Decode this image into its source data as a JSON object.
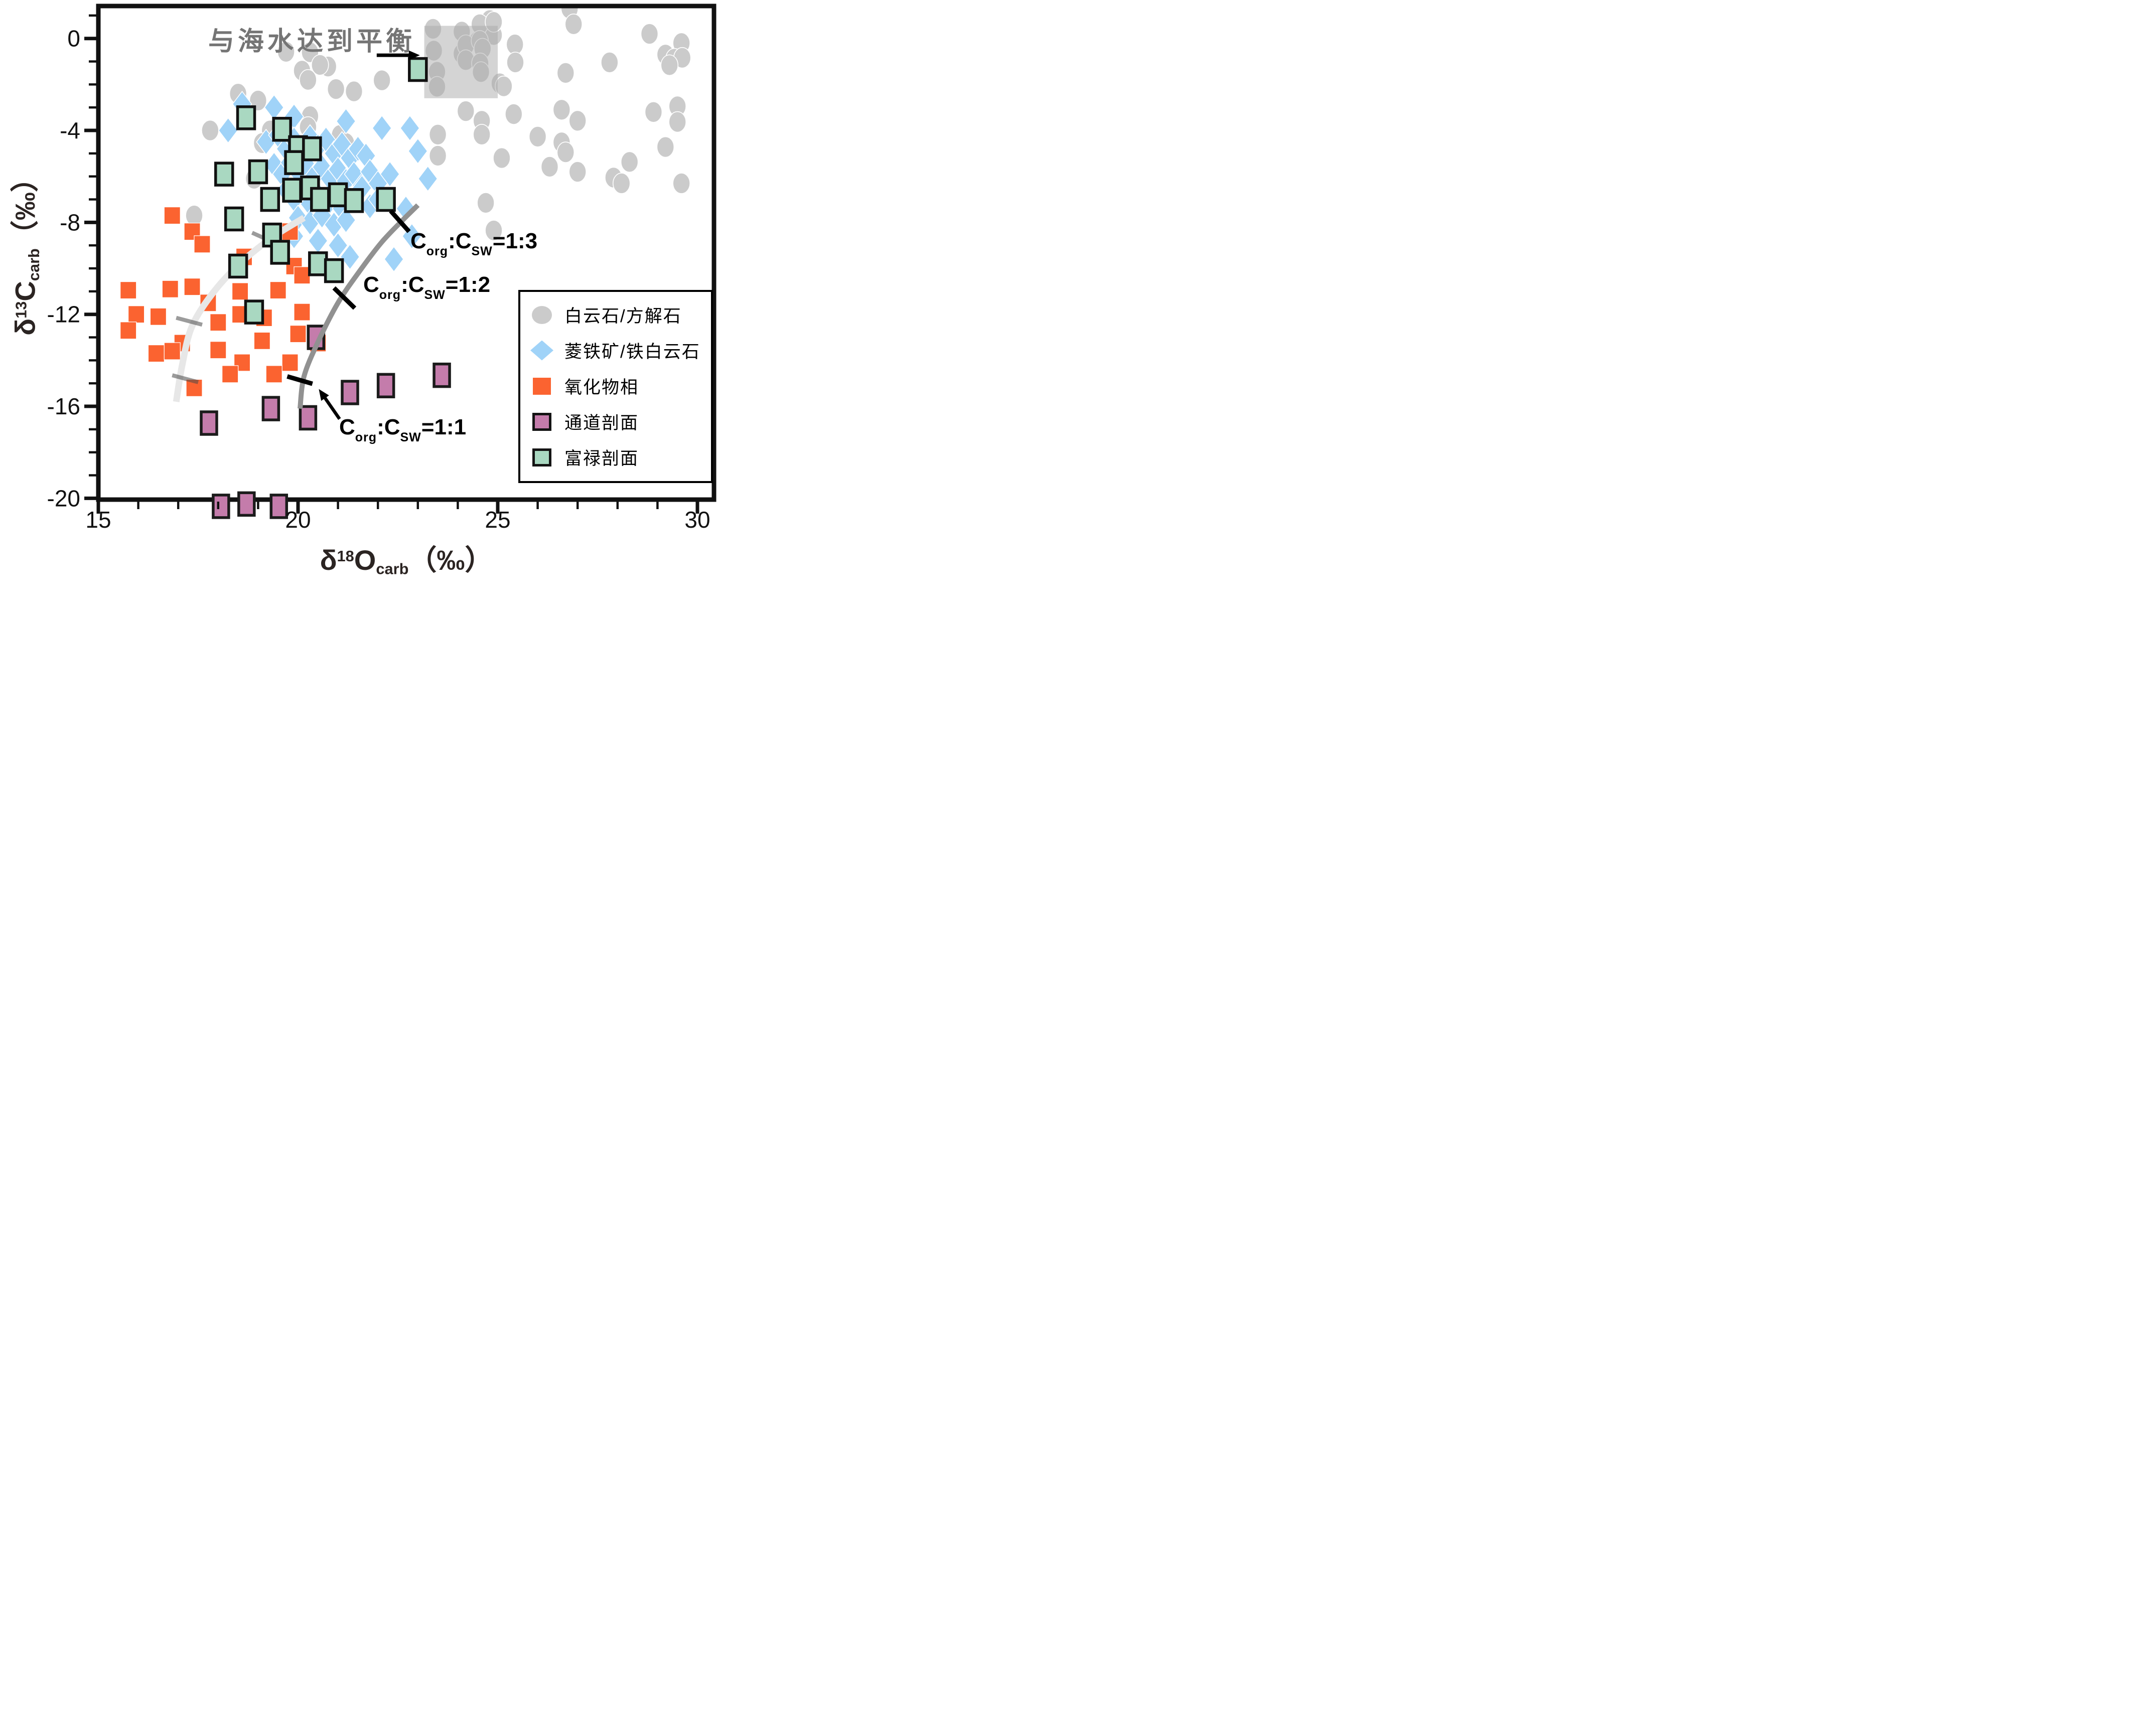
{
  "chart_data": {
    "type": "scatter",
    "xlabel": {
      "delta": "δ",
      "sup": "18",
      "element": "O",
      "sub": "carb",
      "unit": "（‰）"
    },
    "ylabel": {
      "delta": "δ",
      "sup": "13",
      "element": "C",
      "sub": "carb",
      "unit": "（‰）"
    },
    "x_axis": {
      "min": 15,
      "max": 30.4,
      "major_values": [
        15,
        20,
        25,
        30
      ],
      "major_labels": [
        "15",
        "20",
        "25",
        "30"
      ],
      "minor_values": [
        16,
        17,
        18,
        19,
        21,
        22,
        23,
        24,
        26,
        27,
        28,
        29
      ]
    },
    "y_axis": {
      "min": -20.1,
      "max": 1.55,
      "major_values": [
        0,
        -4,
        -8,
        -12,
        -16,
        -20
      ],
      "major_labels": [
        "0",
        "-4",
        "-8",
        "-12",
        "-16",
        "-20"
      ],
      "minor_values": [
        1,
        -1,
        -2,
        -3,
        -5,
        -6,
        -7,
        -9,
        -10,
        -11,
        -13,
        -14,
        -15,
        -17,
        -18,
        -19
      ]
    },
    "frame_color": "#111111",
    "series": [
      {
        "key": "dolomite-calcite",
        "name": "白云石/方解石",
        "marker": "circle",
        "color": "#cbcbcb",
        "edge": "#ffffff",
        "size": [
          34,
          41
        ],
        "points": [
          [
            24.8,
            0.8
          ],
          [
            26.8,
            1.3
          ],
          [
            26.9,
            0.62
          ],
          [
            24.5,
            -0.12
          ],
          [
            24.9,
            0.15
          ],
          [
            23.38,
            0.42
          ],
          [
            24.1,
            0.3
          ],
          [
            24.55,
            0.62
          ],
          [
            24.9,
            0.72
          ],
          [
            23.4,
            -0.53
          ],
          [
            24.1,
            -0.66
          ],
          [
            24.2,
            -0.29
          ],
          [
            24.55,
            -0.1
          ],
          [
            24.62,
            -0.44
          ],
          [
            24.2,
            -0.94
          ],
          [
            24.56,
            -1.08
          ],
          [
            24.58,
            -1.46
          ],
          [
            23.48,
            -1.45
          ],
          [
            23.48,
            -2.1
          ],
          [
            25.05,
            -1.95
          ],
          [
            25.15,
            -2.08
          ],
          [
            28.8,
            0.2
          ],
          [
            29.6,
            -0.2
          ],
          [
            29.2,
            -0.7
          ],
          [
            29.42,
            -0.88
          ],
          [
            29.62,
            -0.84
          ],
          [
            29.3,
            -1.16
          ],
          [
            27.8,
            -1.04
          ],
          [
            26.7,
            -1.5
          ],
          [
            25.43,
            -0.26
          ],
          [
            25.44,
            -1.04
          ],
          [
            26.6,
            -3.1
          ],
          [
            27.0,
            -3.58
          ],
          [
            24.2,
            -3.16
          ],
          [
            24.6,
            -3.58
          ],
          [
            23.5,
            -4.18
          ],
          [
            24.6,
            -4.18
          ],
          [
            25.4,
            -3.29
          ],
          [
            26.0,
            -4.27
          ],
          [
            26.6,
            -4.52
          ],
          [
            26.7,
            -4.95
          ],
          [
            28.9,
            -3.2
          ],
          [
            29.5,
            -2.95
          ],
          [
            29.5,
            -3.63
          ],
          [
            29.2,
            -4.72
          ],
          [
            23.5,
            -5.1
          ],
          [
            25.1,
            -5.2
          ],
          [
            26.3,
            -5.58
          ],
          [
            27.0,
            -5.8
          ],
          [
            28.3,
            -5.37
          ],
          [
            27.9,
            -6.05
          ],
          [
            28.1,
            -6.3
          ],
          [
            29.6,
            -6.3
          ],
          [
            24.7,
            -7.15
          ],
          [
            24.9,
            -8.35
          ],
          [
            17.8,
            -4.0
          ],
          [
            17.4,
            -7.7
          ],
          [
            18.5,
            -2.4
          ],
          [
            19.0,
            -2.7
          ],
          [
            19.3,
            -4.0
          ],
          [
            19.1,
            -4.55
          ],
          [
            18.9,
            -6.1
          ],
          [
            20.1,
            -1.4
          ],
          [
            20.25,
            -1.8
          ],
          [
            20.75,
            -1.22
          ],
          [
            20.95,
            -2.2
          ],
          [
            21.4,
            -2.3
          ],
          [
            22.1,
            -1.82
          ],
          [
            20.3,
            -3.38
          ],
          [
            20.25,
            -3.85
          ],
          [
            21.05,
            -4.2
          ],
          [
            21.2,
            -4.55
          ],
          [
            20.3,
            -0.6
          ],
          [
            20.55,
            -1.15
          ],
          [
            19.7,
            -0.58
          ]
        ]
      },
      {
        "key": "siderite-ankerite",
        "name": "菱铁矿/铁白云石",
        "marker": "diamond",
        "color": "#a0d3f8",
        "edge": "#ffffff",
        "size": [
          38,
          50
        ],
        "points": [
          [
            18.25,
            -4.0
          ],
          [
            18.6,
            -2.85
          ],
          [
            19.4,
            -3.0
          ],
          [
            19.9,
            -3.4
          ],
          [
            21.2,
            -3.6
          ],
          [
            22.1,
            -3.9
          ],
          [
            22.8,
            -3.9
          ],
          [
            19.2,
            -4.5
          ],
          [
            19.5,
            -4.2
          ],
          [
            19.7,
            -4.8
          ],
          [
            19.9,
            -4.4
          ],
          [
            20.1,
            -4.9
          ],
          [
            20.3,
            -4.3
          ],
          [
            20.5,
            -4.7
          ],
          [
            20.7,
            -4.4
          ],
          [
            20.9,
            -5.0
          ],
          [
            21.1,
            -4.6
          ],
          [
            21.3,
            -5.2
          ],
          [
            21.5,
            -4.8
          ],
          [
            21.7,
            -5.1
          ],
          [
            23.0,
            -4.9
          ],
          [
            19.4,
            -5.5
          ],
          [
            19.6,
            -5.9
          ],
          [
            19.8,
            -5.4
          ],
          [
            20.0,
            -5.8
          ],
          [
            20.2,
            -5.5
          ],
          [
            20.4,
            -6.0
          ],
          [
            20.6,
            -5.6
          ],
          [
            20.8,
            -6.1
          ],
          [
            21.0,
            -5.7
          ],
          [
            21.2,
            -6.2
          ],
          [
            21.4,
            -5.9
          ],
          [
            21.6,
            -6.4
          ],
          [
            21.8,
            -5.8
          ],
          [
            22.0,
            -6.3
          ],
          [
            22.3,
            -5.9
          ],
          [
            23.25,
            -6.1
          ],
          [
            19.7,
            -6.6
          ],
          [
            19.9,
            -7.0
          ],
          [
            20.1,
            -6.7
          ],
          [
            20.3,
            -7.2
          ],
          [
            20.5,
            -6.8
          ],
          [
            20.7,
            -7.3
          ],
          [
            20.9,
            -6.9
          ],
          [
            21.1,
            -7.4
          ],
          [
            21.3,
            -7.0
          ],
          [
            21.6,
            -6.5
          ],
          [
            21.8,
            -7.3
          ],
          [
            22.0,
            -7.0
          ],
          [
            22.7,
            -7.4
          ],
          [
            20.0,
            -7.8
          ],
          [
            20.3,
            -8.0
          ],
          [
            20.6,
            -7.7
          ],
          [
            20.9,
            -8.1
          ],
          [
            21.2,
            -7.9
          ],
          [
            19.9,
            -8.6
          ],
          [
            20.5,
            -8.8
          ],
          [
            21.0,
            -9.0
          ],
          [
            21.3,
            -9.5
          ],
          [
            22.4,
            -9.6
          ],
          [
            22.85,
            -8.6
          ]
        ]
      },
      {
        "key": "oxide-phase",
        "name": "氧化物相",
        "marker": "square",
        "color": "#fb6330",
        "edge": "#ffffff",
        "size": [
          32,
          34
        ],
        "points": [
          [
            16.85,
            -7.7
          ],
          [
            17.35,
            -8.4
          ],
          [
            17.6,
            -8.95
          ],
          [
            18.65,
            -9.5
          ],
          [
            19.8,
            -8.4
          ],
          [
            19.9,
            -9.9
          ],
          [
            20.1,
            -10.3
          ],
          [
            19.5,
            -10.95
          ],
          [
            18.55,
            -11.0
          ],
          [
            18.55,
            -12.0
          ],
          [
            19.15,
            -12.15
          ],
          [
            20.1,
            -11.9
          ],
          [
            19.1,
            -13.15
          ],
          [
            18.0,
            -13.55
          ],
          [
            20.0,
            -12.85
          ],
          [
            20.5,
            -13.25
          ],
          [
            19.8,
            -14.1
          ],
          [
            19.4,
            -14.6
          ],
          [
            18.6,
            -14.1
          ],
          [
            18.3,
            -14.6
          ],
          [
            15.75,
            -10.95
          ],
          [
            16.8,
            -10.9
          ],
          [
            17.35,
            -10.8
          ],
          [
            15.95,
            -12.0
          ],
          [
            16.5,
            -12.1
          ],
          [
            15.75,
            -12.7
          ],
          [
            16.45,
            -13.7
          ],
          [
            17.1,
            -13.25
          ],
          [
            16.85,
            -13.6
          ],
          [
            17.75,
            -11.5
          ],
          [
            18.0,
            -12.35
          ],
          [
            17.4,
            -15.2
          ]
        ]
      },
      {
        "key": "tongdao-section",
        "name": "通道剖面",
        "marker": "square_outlined",
        "color": "#c47cab",
        "edge": "#1b1b1b",
        "size": [
          31,
          45
        ],
        "points": [
          [
            20.45,
            -13.0
          ],
          [
            21.3,
            -15.4
          ],
          [
            22.2,
            -15.1
          ],
          [
            23.6,
            -14.65
          ],
          [
            17.77,
            -16.73
          ],
          [
            19.32,
            -16.1
          ],
          [
            20.25,
            -16.5
          ],
          [
            18.07,
            -20.35
          ],
          [
            18.71,
            -20.25
          ],
          [
            19.52,
            -20.35
          ]
        ]
      },
      {
        "key": "fulu-section",
        "name": "富禄剖面",
        "marker": "square_outlined",
        "color": "#a9d8c1",
        "edge": "#111111",
        "size": [
          34,
          44
        ],
        "points": [
          [
            23.0,
            -1.35
          ],
          [
            18.7,
            -3.45
          ],
          [
            19.6,
            -3.95
          ],
          [
            20.0,
            -4.75
          ],
          [
            20.35,
            -4.8
          ],
          [
            19.9,
            -5.4
          ],
          [
            18.15,
            -5.9
          ],
          [
            19.0,
            -5.8
          ],
          [
            19.85,
            -6.6
          ],
          [
            20.3,
            -6.5
          ],
          [
            20.55,
            -7.0
          ],
          [
            21.0,
            -6.8
          ],
          [
            21.4,
            -7.05
          ],
          [
            22.2,
            -7.0
          ],
          [
            19.3,
            -7.0
          ],
          [
            18.4,
            -7.85
          ],
          [
            19.35,
            -8.55
          ],
          [
            19.55,
            -9.3
          ],
          [
            18.5,
            -9.9
          ],
          [
            20.5,
            -9.8
          ],
          [
            20.9,
            -10.1
          ],
          [
            18.9,
            -11.9
          ]
        ]
      }
    ],
    "annotations": {
      "equilibrium_text": "与海水达到平衡",
      "equilibrium_box": {
        "x1": 23.16,
        "x2": 25.0,
        "y1": -2.6,
        "y2": 0.55,
        "color": "#a9a9a9",
        "opacity": 0.5
      },
      "equilibrium_arrow": {
        "from": [
          21.97,
          -0.73
        ],
        "to": [
          23.05,
          -0.73
        ]
      },
      "ratio_arrow": {
        "from": [
          21.04,
          -16.55
        ],
        "to": [
          20.52,
          -15.25
        ]
      },
      "ratio_labels": [
        {
          "c1": "C",
          "s1": "org",
          "c2": ":C",
          "s2": "SW",
          "val": "=1:3"
        },
        {
          "c1": "C",
          "s1": "org",
          "c2": ":C",
          "s2": "SW",
          "val": "=1:2"
        },
        {
          "c1": "C",
          "s1": "org",
          "c2": ":C",
          "s2": "SW",
          "val": "=1:1"
        }
      ],
      "curves": [
        {
          "key": "mixing-curve-dark",
          "color": "#919191",
          "width": 10,
          "opacity": 1,
          "points": [
            [
              20.05,
              -16.1
            ],
            [
              20.15,
              -14.7
            ],
            [
              20.5,
              -13.2
            ],
            [
              21.0,
              -11.5
            ],
            [
              21.55,
              -10.1
            ],
            [
              22.1,
              -8.85
            ],
            [
              22.65,
              -7.85
            ],
            [
              23.0,
              -7.25
            ]
          ]
        },
        {
          "key": "mixing-curve-light",
          "color": "#e7e7e7",
          "width": 13,
          "opacity": 1,
          "points": [
            [
              16.95,
              -15.8
            ],
            [
              17.1,
              -14.2
            ],
            [
              17.35,
              -12.5
            ],
            [
              17.9,
              -11.0
            ],
            [
              18.6,
              -9.7
            ],
            [
              19.4,
              -8.6
            ],
            [
              20.15,
              -7.8
            ]
          ]
        }
      ],
      "curve_ticks_black": [
        [
          [
            22.32,
            -7.5
          ],
          [
            22.78,
            -8.4
          ]
        ],
        [
          [
            20.9,
            -10.85
          ],
          [
            21.42,
            -11.73
          ]
        ],
        [
          [
            19.73,
            -14.7
          ],
          [
            20.36,
            -15.02
          ]
        ]
      ],
      "curve_ticks_gray": [
        [
          [
            18.85,
            -8.45
          ],
          [
            19.5,
            -8.95
          ]
        ],
        [
          [
            16.95,
            -12.15
          ],
          [
            17.6,
            -12.45
          ]
        ],
        [
          [
            16.85,
            -14.65
          ],
          [
            17.5,
            -14.95
          ]
        ]
      ]
    }
  },
  "legend": {
    "items": [
      {
        "label": "白云石/方解石",
        "marker": "circle",
        "color": "#cbcbcb"
      },
      {
        "label": "菱铁矿/铁白云石",
        "marker": "diamond",
        "color": "#a0d3f8"
      },
      {
        "label": "氧化物相",
        "marker": "square",
        "color": "#fb6330"
      },
      {
        "label": "通道剖面",
        "marker": "square_outlined",
        "color": "#c47cab"
      },
      {
        "label": "富禄剖面",
        "marker": "square_outlined",
        "color": "#a9d8c1"
      }
    ]
  }
}
